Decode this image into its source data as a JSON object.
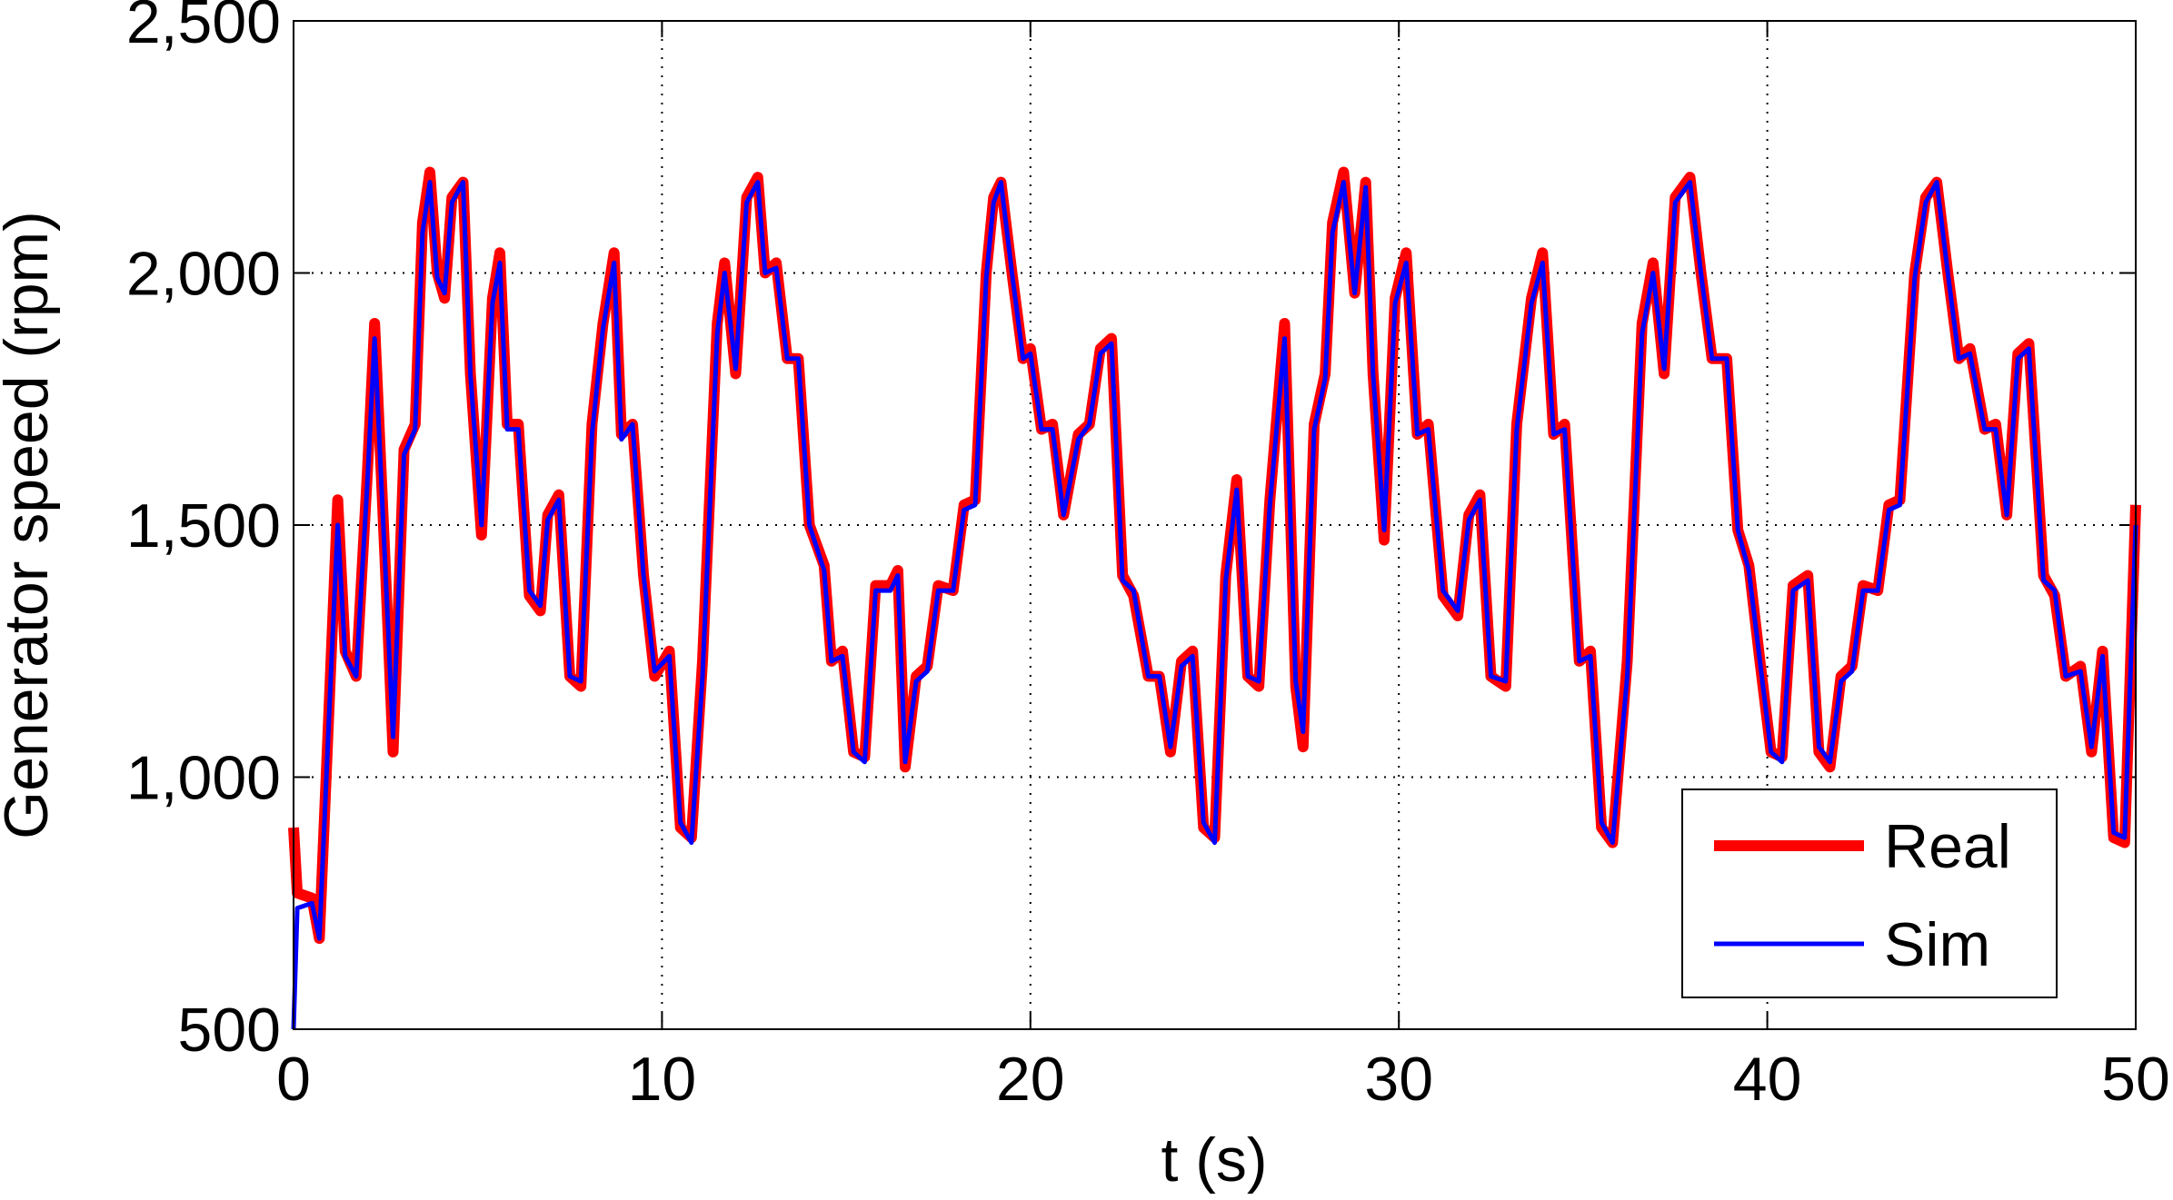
{
  "chart_data": {
    "type": "line",
    "xlabel": "t (s)",
    "ylabel": "Generator speed (rpm)",
    "x": [
      0,
      0.1,
      0.5,
      0.7,
      1.0,
      1.2,
      1.4,
      1.7,
      2.0,
      2.2,
      2.5,
      2.7,
      3.0,
      3.3,
      3.5,
      3.7,
      3.9,
      4.1,
      4.3,
      4.6,
      4.8,
      5.1,
      5.4,
      5.6,
      5.8,
      6.1,
      6.4,
      6.7,
      6.9,
      7.2,
      7.5,
      7.8,
      8.1,
      8.4,
      8.7,
      8.9,
      9.2,
      9.5,
      9.8,
      10.2,
      10.5,
      10.8,
      11.1,
      11.5,
      11.7,
      12.0,
      12.3,
      12.6,
      12.8,
      13.1,
      13.4,
      13.7,
      14.0,
      14.4,
      14.6,
      14.9,
      15.2,
      15.5,
      15.8,
      16.2,
      16.4,
      16.6,
      16.9,
      17.2,
      17.5,
      17.9,
      18.2,
      18.5,
      18.8,
      19.0,
      19.2,
      19.5,
      19.8,
      20.0,
      20.3,
      20.6,
      20.9,
      21.3,
      21.6,
      21.9,
      22.2,
      22.5,
      22.8,
      23.2,
      23.5,
      23.8,
      24.1,
      24.4,
      24.7,
      25.0,
      25.3,
      25.6,
      25.9,
      26.2,
      26.5,
      26.9,
      27.2,
      27.4,
      27.7,
      28.0,
      28.2,
      28.5,
      28.8,
      29.1,
      29.3,
      29.6,
      29.9,
      30.2,
      30.5,
      30.8,
      31.2,
      31.6,
      31.9,
      32.2,
      32.5,
      32.9,
      33.2,
      33.6,
      33.9,
      34.2,
      34.5,
      34.9,
      35.2,
      35.5,
      35.8,
      36.2,
      36.6,
      36.9,
      37.2,
      37.5,
      37.9,
      38.2,
      38.5,
      38.9,
      39.2,
      39.5,
      39.8,
      40.1,
      40.4,
      40.7,
      41.1,
      41.4,
      41.7,
      42.0,
      42.3,
      42.6,
      43.0,
      43.3,
      43.6,
      44.0,
      44.3,
      44.6,
      44.9,
      45.2,
      45.5,
      45.9,
      46.2,
      46.5,
      46.8,
      47.1,
      47.5,
      47.8,
      48.1,
      48.5,
      48.8,
      49.1,
      49.4,
      49.7,
      50.0
    ],
    "series": [
      {
        "name": "Real",
        "color": "#ff0000",
        "values": [
          900,
          770,
          760,
          680,
          1200,
          1550,
          1250,
          1200,
          1600,
          1900,
          1400,
          1050,
          1650,
          1700,
          2100,
          2200,
          2000,
          1950,
          2150,
          2180,
          1800,
          1480,
          1950,
          2040,
          1700,
          1700,
          1360,
          1330,
          1520,
          1560,
          1200,
          1180,
          1700,
          1900,
          2040,
          1680,
          1700,
          1400,
          1200,
          1250,
          900,
          880,
          1230,
          1900,
          2020,
          1800,
          2150,
          2190,
          2000,
          2020,
          1830,
          1830,
          1500,
          1420,
          1230,
          1250,
          1050,
          1040,
          1380,
          1380,
          1410,
          1020,
          1200,
          1220,
          1380,
          1370,
          1540,
          1550,
          2000,
          2150,
          2180,
          2000,
          1830,
          1850,
          1690,
          1700,
          1520,
          1680,
          1700,
          1850,
          1870,
          1400,
          1360,
          1200,
          1200,
          1050,
          1230,
          1250,
          900,
          880,
          1400,
          1590,
          1200,
          1180,
          1550,
          1900,
          1180,
          1060,
          1700,
          1800,
          2100,
          2200,
          1960,
          2180,
          1800,
          1470,
          1950,
          2040,
          1680,
          1700,
          1360,
          1320,
          1520,
          1560,
          1200,
          1180,
          1700,
          1950,
          2040,
          1680,
          1700,
          1230,
          1250,
          900,
          870,
          1230,
          1900,
          2020,
          1800,
          2150,
          2190,
          2000,
          1830,
          1830,
          1490,
          1420,
          1230,
          1050,
          1040,
          1380,
          1400,
          1050,
          1020,
          1200,
          1220,
          1380,
          1370,
          1540,
          1550,
          2000,
          2150,
          2180,
          2000,
          1830,
          1850,
          1690,
          1700,
          1520,
          1840,
          1860,
          1400,
          1360,
          1200,
          1220,
          1050,
          1250,
          880,
          870,
          1540
        ]
      },
      {
        "name": "Sim",
        "color": "#0000ff",
        "values": [
          500,
          740,
          750,
          680,
          1180,
          1500,
          1240,
          1200,
          1580,
          1870,
          1400,
          1080,
          1640,
          1690,
          2080,
          2180,
          1990,
          1960,
          2140,
          2180,
          1800,
          1500,
          1940,
          2020,
          1690,
          1690,
          1370,
          1340,
          1510,
          1550,
          1200,
          1190,
          1680,
          1890,
          2020,
          1670,
          1700,
          1400,
          1210,
          1240,
          910,
          870,
          1200,
          1880,
          2000,
          1810,
          2140,
          2180,
          2000,
          2010,
          1830,
          1830,
          1500,
          1410,
          1230,
          1240,
          1050,
          1030,
          1370,
          1370,
          1400,
          1030,
          1190,
          1210,
          1370,
          1370,
          1530,
          1540,
          1990,
          2140,
          2180,
          2000,
          1830,
          1840,
          1690,
          1690,
          1520,
          1670,
          1700,
          1840,
          1860,
          1390,
          1370,
          1200,
          1200,
          1060,
          1220,
          1240,
          910,
          870,
          1390,
          1570,
          1200,
          1190,
          1540,
          1870,
          1190,
          1090,
          1690,
          1790,
          2080,
          2180,
          1960,
          2170,
          1800,
          1490,
          1940,
          2020,
          1680,
          1690,
          1370,
          1330,
          1510,
          1550,
          1200,
          1190,
          1690,
          1940,
          2020,
          1680,
          1690,
          1230,
          1240,
          910,
          870,
          1200,
          1880,
          2000,
          1810,
          2140,
          2180,
          2000,
          1830,
          1830,
          1490,
          1410,
          1230,
          1050,
          1030,
          1370,
          1390,
          1060,
          1030,
          1190,
          1210,
          1370,
          1370,
          1530,
          1540,
          1990,
          2140,
          2180,
          2000,
          1830,
          1840,
          1690,
          1690,
          1520,
          1830,
          1850,
          1390,
          1370,
          1200,
          1210,
          1060,
          1240,
          890,
          880,
          1500
        ]
      }
    ],
    "xlim": [
      0,
      50
    ],
    "xticks": [
      0,
      10,
      20,
      30,
      40,
      50
    ],
    "ylim": [
      500,
      2500
    ],
    "yticks": [
      {
        "value": 500,
        "label": "500"
      },
      {
        "value": 1000,
        "label": "1,000"
      },
      {
        "value": 1500,
        "label": "1,500"
      },
      {
        "value": 2000,
        "label": "2,000"
      },
      {
        "value": 2500,
        "label": "2,500"
      }
    ],
    "grid": true,
    "legend": "lower right"
  }
}
